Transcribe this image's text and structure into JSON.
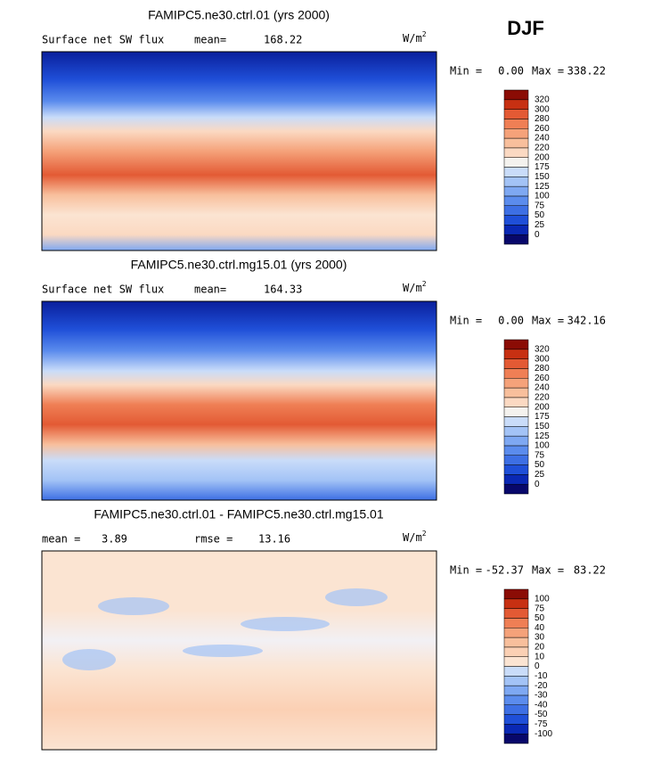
{
  "season": "DJF",
  "palettes": {
    "abs": [
      "#08086b",
      "#0a28b4",
      "#1f4fd8",
      "#3d6fe4",
      "#5b8ced",
      "#7ea8f2",
      "#a3c3f6",
      "#c9dcf9",
      "#f4f2ee",
      "#fbd9c2",
      "#f8bf9c",
      "#f5a27a",
      "#ef7f55",
      "#e35a34",
      "#c73012",
      "#8b0c05"
    ],
    "diff": [
      "#08086b",
      "#0a28b4",
      "#1f4fd8",
      "#3d6fe4",
      "#5b8ced",
      "#7ea8f2",
      "#a3c3f6",
      "#c9dcf9",
      "#fbe4d2",
      "#fbd0b4",
      "#f8bf9c",
      "#f5a27a",
      "#ef7f55",
      "#e35a34",
      "#c73012",
      "#8b0c05"
    ]
  },
  "panels": [
    {
      "title": "FAMIPC5.ne30.ctrl.01 (yrs 2000)",
      "stats": [
        {
          "label": "Surface net SW flux"
        },
        {
          "label": "mean=",
          "value": "168.22"
        }
      ],
      "units": "W/m",
      "units_exp": "2",
      "min_label": "Min =",
      "min": "0.00",
      "max_label": "Max =",
      "max": "338.22",
      "palette": "abs",
      "levels": [
        0,
        25,
        50,
        75,
        100,
        125,
        150,
        175,
        200,
        220,
        240,
        260,
        280,
        300,
        320
      ]
    },
    {
      "title": "FAMIPC5.ne30.ctrl.mg15.01 (yrs 2000)",
      "stats": [
        {
          "label": "Surface net SW flux"
        },
        {
          "label": "mean=",
          "value": "164.33"
        }
      ],
      "units": "W/m",
      "units_exp": "2",
      "min_label": "Min =",
      "min": "0.00",
      "max_label": "Max =",
      "max": "342.16",
      "palette": "abs",
      "levels": [
        0,
        25,
        50,
        75,
        100,
        125,
        150,
        175,
        200,
        220,
        240,
        260,
        280,
        300,
        320
      ]
    },
    {
      "title": "FAMIPC5.ne30.ctrl.01 - FAMIPC5.ne30.ctrl.mg15.01",
      "stats": [
        {
          "label": "mean =",
          "value": "3.89"
        },
        {
          "label": "rmse =",
          "value": "13.16"
        }
      ],
      "units": "W/m",
      "units_exp": "2",
      "min_label": "Min =",
      "min": "-52.37",
      "max_label": "Max =",
      "max": "83.22",
      "palette": "diff",
      "levels": [
        -100,
        -75,
        -50,
        -40,
        -30,
        -20,
        -10,
        0,
        10,
        20,
        30,
        40,
        50,
        75,
        100
      ]
    }
  ]
}
